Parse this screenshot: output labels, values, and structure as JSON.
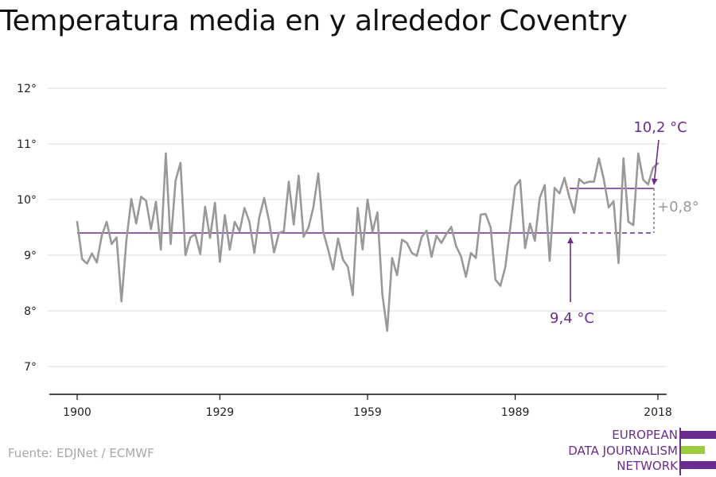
{
  "title": "Temperatura media en y alrededor Coventry",
  "source": "Fuente: EDJNet / ECMWF",
  "logo": {
    "lines": [
      "EUROPEAN",
      "DATA JOURNALISM",
      "NETWORK"
    ]
  },
  "colors": {
    "line": "#999999",
    "reference": "#6a2c8e",
    "grid": "#dddddd",
    "axis": "#111111",
    "logo_purple": "#6a2c8e",
    "logo_green": "#9ccc3c"
  },
  "chart_data": {
    "type": "line",
    "title": "Temperatura media en y alrededor Coventry",
    "xlabel": "",
    "ylabel": "",
    "grid": true,
    "xlim": [
      1900,
      2018
    ],
    "ylim": [
      6.5,
      12.5
    ],
    "x_ticks": [
      1900,
      1929,
      1959,
      1989,
      2018
    ],
    "x_tick_labels": [
      "1900",
      "1929",
      "1959",
      "1989",
      "2018"
    ],
    "y_ticks": [
      7,
      8,
      9,
      10,
      11,
      12
    ],
    "y_tick_labels": [
      "7°",
      "8°",
      "9°",
      "10°",
      "11°",
      "12°"
    ],
    "series": [
      {
        "x": [
          1900,
          1901,
          1902,
          1903,
          1904,
          1905,
          1906,
          1907,
          1908,
          1909,
          1910,
          1911,
          1912,
          1913,
          1914,
          1915,
          1916,
          1917,
          1918,
          1919,
          1920,
          1921,
          1922,
          1923,
          1924,
          1925,
          1926,
          1927,
          1928,
          1929,
          1930,
          1931,
          1932,
          1933,
          1934,
          1935,
          1936,
          1937,
          1938,
          1939,
          1940,
          1941,
          1942,
          1943,
          1944,
          1945,
          1946,
          1947,
          1948,
          1949,
          1950,
          1951,
          1952,
          1953,
          1954,
          1955,
          1956,
          1957,
          1958,
          1959,
          1960,
          1961,
          1962,
          1963,
          1964,
          1965,
          1966,
          1967,
          1968,
          1969,
          1970,
          1971,
          1972,
          1973,
          1974,
          1975,
          1976,
          1977,
          1978,
          1979,
          1980,
          1981,
          1982,
          1983,
          1984,
          1985,
          1986,
          1987,
          1988,
          1989,
          1990,
          1991,
          1992,
          1993,
          1994,
          1995,
          1996,
          1997,
          1998,
          1999,
          2000,
          2001,
          2002,
          2003,
          2004,
          2005,
          2006,
          2007,
          2008,
          2009,
          2010,
          2011,
          2012,
          2013,
          2014,
          2015,
          2016,
          2017,
          2018
        ],
        "values": [
          9.6,
          8.93,
          8.85,
          9.03,
          8.87,
          9.35,
          9.6,
          9.2,
          9.32,
          8.17,
          9.27,
          10.01,
          9.57,
          10.05,
          9.98,
          9.47,
          9.96,
          9.1,
          10.83,
          9.2,
          10.34,
          10.66,
          9.0,
          9.32,
          9.38,
          9.02,
          9.87,
          9.31,
          9.94,
          8.88,
          9.72,
          9.1,
          9.6,
          9.43,
          9.85,
          9.6,
          9.04,
          9.68,
          10.03,
          9.61,
          9.05,
          9.4,
          9.43,
          10.32,
          9.55,
          10.43,
          9.33,
          9.5,
          9.86,
          10.47,
          9.42,
          9.1,
          8.74,
          9.3,
          8.92,
          8.79,
          8.28,
          9.85,
          9.1,
          10.0,
          9.42,
          9.77,
          8.3,
          7.64,
          8.95,
          8.64,
          9.28,
          9.22,
          9.04,
          8.99,
          9.33,
          9.44,
          8.97,
          9.35,
          9.22,
          9.38,
          9.51,
          9.16,
          8.98,
          8.61,
          9.04,
          8.95,
          9.73,
          9.74,
          9.5,
          8.56,
          8.45,
          8.79,
          9.5,
          10.24,
          10.35,
          9.13,
          9.57,
          9.26,
          10.03,
          10.26,
          8.9,
          10.21,
          10.11,
          10.39,
          10.05,
          9.76,
          10.37,
          10.29,
          10.32,
          10.32,
          10.74,
          10.37,
          9.86,
          9.97,
          8.86,
          10.74,
          9.6,
          9.54,
          10.83,
          10.36,
          10.27,
          10.57,
          10.65
        ]
      }
    ],
    "reference_lines": [
      {
        "value": 9.4,
        "label": "9,4 °C"
      },
      {
        "value": 10.2,
        "label": "10,2 °C"
      }
    ],
    "difference_label": "+0,8°"
  }
}
